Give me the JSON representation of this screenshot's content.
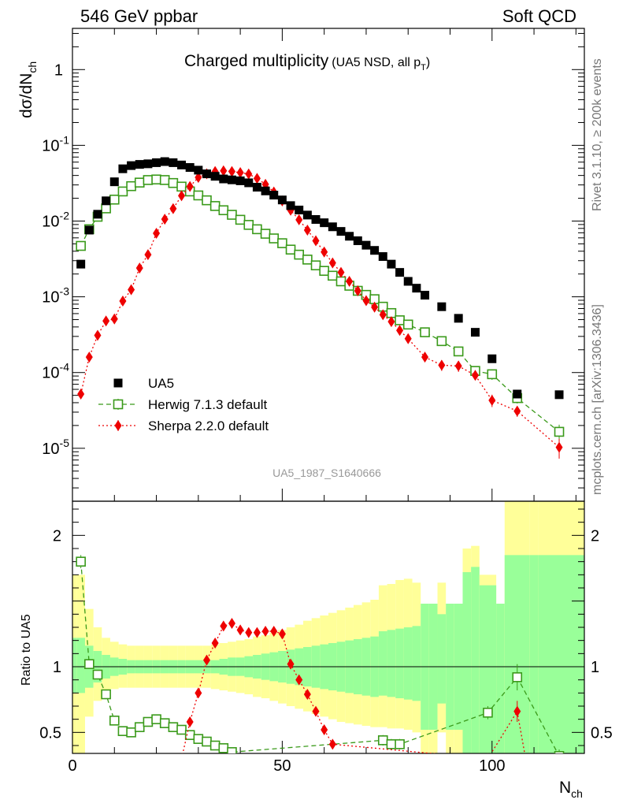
{
  "header": {
    "left": "546 GeV ppbar",
    "right": "Soft QCD"
  },
  "side_text": {
    "top": "Rivet 3.1.10, ≥ 200k events",
    "bottom": "mcplots.cern.ch [arXiv:1306.3436]"
  },
  "title": {
    "main": "Charged multiplicity",
    "sub": "(UA5 NSD, all p",
    "sub_index": "T",
    "sub_close": ")"
  },
  "analysis_id": "UA5_1987_S1640666",
  "colors": {
    "data": "#000000",
    "herwig": "#3a9a1a",
    "sherpa": "#ee0000",
    "band_outer": "#ffff99",
    "band_inner": "#99ff99"
  },
  "chart_data": [
    {
      "type": "scatter",
      "panel": "main",
      "y_axis": {
        "label": "dσ/dN",
        "label_sub": "ch",
        "scale": "log",
        "ylim": [
          2e-06,
          3.5
        ],
        "ticks": [
          "10^{-5}",
          "10^{-4}",
          "10^{-3}",
          "10^{-2}",
          "10^{-1}",
          "1"
        ]
      },
      "x_axis": {
        "xlim": [
          0,
          122
        ],
        "scale": "linear"
      },
      "legend": {
        "placement": "bottom-left",
        "entries": [
          "UA5",
          "Herwig 7.1.3 default",
          "Sherpa 2.2.0 default"
        ]
      },
      "series": [
        {
          "name": "UA5",
          "marker": "filled-square",
          "x": [
            2,
            4,
            6,
            8,
            10,
            12,
            14,
            16,
            18,
            20,
            22,
            24,
            26,
            28,
            30,
            32,
            34,
            36,
            38,
            40,
            42,
            44,
            46,
            48,
            50,
            52,
            54,
            56,
            58,
            60,
            62,
            64,
            66,
            68,
            70,
            72,
            74,
            76,
            78,
            80,
            82,
            84,
            88,
            92,
            96,
            100,
            106,
            116
          ],
          "y": [
            0.0027,
            0.0076,
            0.0123,
            0.0185,
            0.033,
            0.049,
            0.054,
            0.056,
            0.057,
            0.059,
            0.061,
            0.059,
            0.055,
            0.051,
            0.047,
            0.042,
            0.039,
            0.036,
            0.035,
            0.034,
            0.032,
            0.028,
            0.025,
            0.022,
            0.019,
            0.016,
            0.014,
            0.012,
            0.0105,
            0.0095,
            0.0084,
            0.0073,
            0.0063,
            0.0055,
            0.0048,
            0.0041,
            0.0034,
            0.0027,
            0.0021,
            0.0016,
            0.0013,
            0.00105,
            0.00074,
            0.00052,
            0.00034,
            0.000152,
            5.2e-05,
            5.1e-05
          ]
        },
        {
          "name": "Herwig 7.1.3 default",
          "marker": "open-square",
          "line": "dashed",
          "x": [
            2,
            4,
            6,
            8,
            10,
            12,
            14,
            16,
            18,
            20,
            22,
            24,
            26,
            28,
            30,
            32,
            34,
            36,
            38,
            40,
            42,
            44,
            46,
            48,
            50,
            52,
            54,
            56,
            58,
            60,
            62,
            64,
            66,
            68,
            70,
            72,
            74,
            76,
            78,
            80,
            84,
            88,
            92,
            96,
            100,
            106,
            116
          ],
          "y": [
            0.0047,
            0.0078,
            0.0114,
            0.0147,
            0.0192,
            0.0246,
            0.0289,
            0.0322,
            0.0348,
            0.0354,
            0.0348,
            0.0318,
            0.0285,
            0.0246,
            0.0218,
            0.0188,
            0.0158,
            0.0139,
            0.0121,
            0.0104,
            0.0089,
            0.0078,
            0.0068,
            0.0059,
            0.0051,
            0.0042,
            0.0036,
            0.0031,
            0.0026,
            0.0022,
            0.0019,
            0.0016,
            0.0014,
            0.0012,
            0.00106,
            0.00093,
            0.00074,
            0.00061,
            0.00049,
            0.00043,
            0.00034,
            0.00026,
            0.00019,
            0.000105,
            9.5e-05,
            4.6e-05,
            1.65e-05
          ],
          "yerr": [
            0.0002,
            0.0003,
            0.0003,
            0.0004,
            0.0004,
            0.0005,
            0.0005,
            0.0005,
            0.0005,
            0.0005,
            0.0005,
            0.0005,
            0.0004,
            0.0004,
            0.0004,
            0.0003,
            0.0003,
            0.0003,
            0.0002,
            0.0002,
            0.0002,
            0.00015,
            0.00013,
            0.00012,
            0.0001,
            9e-05,
            8e-05,
            7e-05,
            6e-05,
            5e-05,
            5e-05,
            4e-05,
            4e-05,
            4e-05,
            4e-05,
            4e-05,
            4e-05,
            3e-05,
            3e-05,
            3e-05,
            2e-05,
            2e-05,
            2e-05,
            1.5e-05,
            1.5e-05,
            7e-06,
            4e-06
          ]
        },
        {
          "name": "Sherpa 2.2.0 default",
          "marker": "filled-diamond",
          "line": "dotted",
          "x": [
            2,
            4,
            6,
            8,
            10,
            12,
            14,
            16,
            18,
            20,
            22,
            24,
            26,
            28,
            30,
            32,
            34,
            36,
            38,
            40,
            42,
            44,
            46,
            48,
            50,
            52,
            54,
            56,
            58,
            60,
            62,
            64,
            66,
            68,
            70,
            72,
            74,
            76,
            78,
            80,
            84,
            88,
            92,
            96,
            100,
            106,
            116
          ],
          "y": [
            5.2e-05,
            0.00016,
            0.00031,
            0.00048,
            0.00051,
            0.00088,
            0.00124,
            0.0024,
            0.0036,
            0.0069,
            0.0106,
            0.0146,
            0.0216,
            0.0286,
            0.0377,
            0.0421,
            0.0451,
            0.0461,
            0.0451,
            0.0436,
            0.0418,
            0.0366,
            0.0306,
            0.0242,
            0.0184,
            0.0139,
            0.0104,
            0.0076,
            0.0055,
            0.0039,
            0.0028,
            0.0021,
            0.0016,
            0.0012,
            0.00089,
            0.00073,
            0.00058,
            0.00047,
            0.00036,
            0.00028,
            0.00016,
            0.000125,
            0.000122,
            9.2e-05,
            4.3e-05,
            3.1e-05,
            1.03e-05
          ],
          "yerr": [
            6e-06,
            1e-05,
            2e-05,
            2e-05,
            2e-05,
            3e-05,
            4e-05,
            6e-05,
            8e-05,
            0.0001,
            0.0002,
            0.0002,
            0.0003,
            0.0003,
            0.0004,
            0.0004,
            0.0004,
            0.0004,
            0.0004,
            0.0004,
            0.0004,
            0.0003,
            0.0003,
            0.0003,
            0.0002,
            0.0002,
            0.0002,
            0.0001,
            0.0001,
            0.0001,
            8e-05,
            6e-05,
            5e-05,
            4e-05,
            4e-05,
            3e-05,
            3e-05,
            3e-05,
            3e-05,
            2e-05,
            2e-05,
            2e-05,
            2e-05,
            1e-05,
            8e-06,
            5e-06,
            3e-06
          ]
        }
      ]
    },
    {
      "type": "scatter",
      "panel": "ratio",
      "y_axis": {
        "label": "Ratio to UA5",
        "scale": "linear",
        "ylim": [
          0.34,
          2.26
        ],
        "ticks": [
          0.5,
          1,
          2
        ]
      },
      "x_axis": {
        "label": "N",
        "label_sub": "ch",
        "xlim": [
          0,
          122
        ],
        "ticks": [
          0,
          50,
          100
        ]
      },
      "reference_line": 1,
      "band": {
        "edges": [
          0,
          1,
          3,
          5,
          7,
          9,
          11,
          13,
          15,
          17,
          19,
          21,
          23,
          25,
          27,
          29,
          31,
          33,
          35,
          37,
          39,
          41,
          43,
          45,
          47,
          49,
          51,
          53,
          55,
          57,
          59,
          61,
          63,
          65,
          67,
          69,
          71,
          73,
          75,
          77,
          79,
          81,
          83,
          85,
          87,
          89,
          91,
          93,
          95,
          97,
          101,
          103,
          109,
          111,
          122
        ],
        "outer_low": [
          0.3,
          0.3,
          0.62,
          0.74,
          0.8,
          0.83,
          0.84,
          0.84,
          0.84,
          0.84,
          0.84,
          0.84,
          0.84,
          0.84,
          0.84,
          0.84,
          0.84,
          0.83,
          0.82,
          0.81,
          0.8,
          0.79,
          0.77,
          0.76,
          0.74,
          0.72,
          0.7,
          0.68,
          0.66,
          0.64,
          0.62,
          0.6,
          0.58,
          0.57,
          0.56,
          0.55,
          0.54,
          0.54,
          0.53,
          0.53,
          0.52,
          0.5,
          0.3,
          0.3,
          0.5,
          0.3,
          0.3,
          0.3,
          0.3,
          0.3,
          0.3,
          0.3,
          0.3,
          0.3
        ],
        "outer_high": [
          1.7,
          1.7,
          1.44,
          1.3,
          1.22,
          1.19,
          1.17,
          1.16,
          1.16,
          1.16,
          1.16,
          1.16,
          1.16,
          1.16,
          1.16,
          1.16,
          1.16,
          1.17,
          1.18,
          1.19,
          1.2,
          1.21,
          1.23,
          1.24,
          1.26,
          1.28,
          1.3,
          1.32,
          1.35,
          1.37,
          1.39,
          1.41,
          1.43,
          1.45,
          1.47,
          1.49,
          1.51,
          1.62,
          1.63,
          1.66,
          1.67,
          1.64,
          1.45,
          1.45,
          1.64,
          1.45,
          1.45,
          1.9,
          1.92,
          1.7,
          1.45,
          2.3,
          2.3,
          2.3,
          2.3
        ],
        "inner_low": [
          0.8,
          0.8,
          0.84,
          0.88,
          0.91,
          0.93,
          0.94,
          0.95,
          0.95,
          0.95,
          0.95,
          0.95,
          0.95,
          0.95,
          0.95,
          0.95,
          0.95,
          0.95,
          0.94,
          0.93,
          0.93,
          0.92,
          0.91,
          0.9,
          0.89,
          0.88,
          0.87,
          0.86,
          0.85,
          0.84,
          0.83,
          0.82,
          0.81,
          0.8,
          0.79,
          0.78,
          0.77,
          0.78,
          0.77,
          0.76,
          0.75,
          0.74,
          0.52,
          0.52,
          0.72,
          0.52,
          0.52,
          0.3,
          0.3,
          0.3,
          0.3,
          0.3,
          0.3,
          0.3
        ],
        "inner_high": [
          1.22,
          1.22,
          1.16,
          1.12,
          1.09,
          1.07,
          1.06,
          1.05,
          1.05,
          1.05,
          1.05,
          1.05,
          1.05,
          1.05,
          1.05,
          1.05,
          1.05,
          1.05,
          1.06,
          1.07,
          1.07,
          1.08,
          1.09,
          1.1,
          1.11,
          1.12,
          1.13,
          1.14,
          1.15,
          1.16,
          1.17,
          1.18,
          1.19,
          1.2,
          1.21,
          1.22,
          1.23,
          1.27,
          1.28,
          1.29,
          1.3,
          1.31,
          1.48,
          1.48,
          1.4,
          1.48,
          1.48,
          1.72,
          1.76,
          1.62,
          1.48,
          1.85,
          1.85,
          1.85,
          1.85
        ]
      },
      "series": [
        {
          "name": "Herwig 7.1.3 default",
          "marker": "open-square",
          "line": "dashed",
          "x": [
            2,
            4,
            6,
            8,
            10,
            12,
            14,
            16,
            18,
            20,
            22,
            24,
            26,
            28,
            30,
            32,
            34,
            36,
            38,
            74,
            76,
            78,
            99,
            106,
            116
          ],
          "y": [
            1.8,
            1.02,
            0.94,
            0.79,
            0.59,
            0.51,
            0.5,
            0.54,
            0.58,
            0.6,
            0.57,
            0.54,
            0.52,
            0.48,
            0.45,
            0.43,
            0.4,
            0.38,
            0.35,
            0.44,
            0.41,
            0.41,
            0.65,
            0.92,
            0.32
          ],
          "yerr": [
            0.05,
            0.03,
            0.02,
            0.02,
            0.01,
            0.01,
            0.01,
            0.01,
            0.01,
            0.01,
            0.01,
            0.01,
            0.01,
            0.01,
            0.01,
            0.01,
            0.01,
            0.01,
            0.01,
            0.04,
            0.04,
            0.04,
            0.05,
            0.1,
            0.05
          ]
        },
        {
          "name": "Sherpa 2.2.0 default",
          "marker": "filled-diamond",
          "line": "dotted",
          "x": [
            26,
            28,
            30,
            32,
            34,
            36,
            38,
            40,
            42,
            44,
            46,
            48,
            50,
            52,
            54,
            56,
            58,
            60,
            62,
            99,
            106,
            108
          ],
          "y": [
            0.3,
            0.58,
            0.8,
            1.05,
            1.18,
            1.31,
            1.33,
            1.28,
            1.26,
            1.26,
            1.27,
            1.27,
            1.25,
            1.02,
            0.9,
            0.79,
            0.66,
            0.52,
            0.41,
            0.3,
            0.66,
            0.3
          ],
          "yerr": [
            0,
            0.01,
            0.01,
            0.01,
            0.01,
            0.01,
            0.01,
            0.01,
            0.01,
            0.01,
            0.01,
            0.01,
            0.01,
            0.01,
            0.01,
            0.01,
            0.01,
            0.01,
            0.01,
            0,
            0.08,
            0
          ]
        }
      ]
    }
  ]
}
